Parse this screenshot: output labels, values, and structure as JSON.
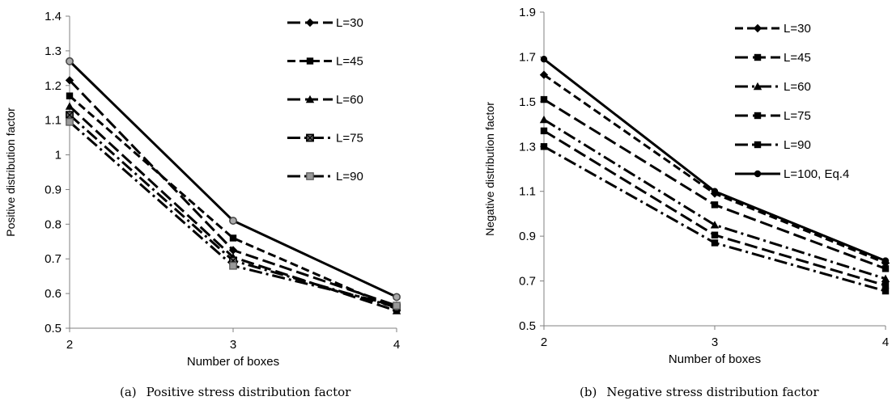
{
  "chart_data": [
    {
      "type": "line",
      "x": [
        2,
        3,
        4
      ],
      "xlabel": "Number of boxes",
      "ylabel": "Positive distribution factor",
      "xticks": [
        "2",
        "3",
        "4"
      ],
      "yticks": [
        "0.5",
        "0.6",
        "0.7",
        "0.8",
        "0.9",
        "1",
        "1.1",
        "1.2",
        "1.3",
        "1.4"
      ],
      "xlim": [
        2,
        4
      ],
      "ylim": [
        0.5,
        1.4
      ],
      "grid": false,
      "legend_position": "top-right",
      "series": [
        {
          "name": "L=30",
          "values": [
            1.215,
            0.725,
            0.565
          ],
          "marker": "diamond",
          "dash": "long-dash",
          "color": "#000000"
        },
        {
          "name": "L=45",
          "values": [
            1.17,
            0.76,
            0.555
          ],
          "marker": "square",
          "dash": "dash",
          "color": "#000000"
        },
        {
          "name": "L=60",
          "values": [
            1.14,
            0.705,
            0.55
          ],
          "marker": "triangle",
          "dash": "long-dash",
          "color": "#000000"
        },
        {
          "name": "L=75",
          "values": [
            1.115,
            0.695,
            0.56
          ],
          "marker": "box-x",
          "dash": "long-dash-dot",
          "color": "#000000"
        },
        {
          "name": "L=90",
          "values": [
            1.095,
            0.68,
            0.565
          ],
          "marker": "box-gray",
          "dash": "long-dash-dot",
          "color": "#000000"
        },
        {
          "name": "",
          "values": [
            1.27,
            0.81,
            0.59
          ],
          "marker": "circle-gray",
          "dash": "solid",
          "color": "#000000"
        }
      ],
      "caption_tag": "(a)",
      "caption_text": "Positive stress distribution factor"
    },
    {
      "type": "line",
      "x": [
        2,
        3,
        4
      ],
      "xlabel": "Number of boxes",
      "ylabel": "Negative distribution factor",
      "xticks": [
        "2",
        "3",
        "4"
      ],
      "yticks": [
        "0.5",
        "0.7",
        "0.9",
        "1.1",
        "1.3",
        "1.5",
        "1.7",
        "1.9"
      ],
      "xlim": [
        2,
        4
      ],
      "ylim": [
        0.5,
        1.9
      ],
      "grid": false,
      "legend_position": "top-right",
      "series": [
        {
          "name": "L=30",
          "values": [
            1.62,
            1.09,
            0.78
          ],
          "marker": "diamond",
          "dash": "dash",
          "color": "#000000"
        },
        {
          "name": "L=45",
          "values": [
            1.51,
            1.04,
            0.755
          ],
          "marker": "square",
          "dash": "long-dash",
          "color": "#000000"
        },
        {
          "name": "L=60",
          "values": [
            1.42,
            0.95,
            0.71
          ],
          "marker": "triangle",
          "dash": "long-dash-dot",
          "color": "#000000"
        },
        {
          "name": "L=75",
          "values": [
            1.37,
            0.905,
            0.68
          ],
          "marker": "square",
          "dash": "long-dash",
          "color": "#000000"
        },
        {
          "name": "L=90",
          "values": [
            1.3,
            0.87,
            0.655
          ],
          "marker": "square",
          "dash": "long-dash-dot",
          "color": "#000000"
        },
        {
          "name": "L=100, Eq.4",
          "values": [
            1.69,
            1.1,
            0.79
          ],
          "marker": "circle",
          "dash": "solid",
          "color": "#000000"
        }
      ],
      "caption_tag": "(b)",
      "caption_text": "Negative stress distribution factor"
    }
  ]
}
